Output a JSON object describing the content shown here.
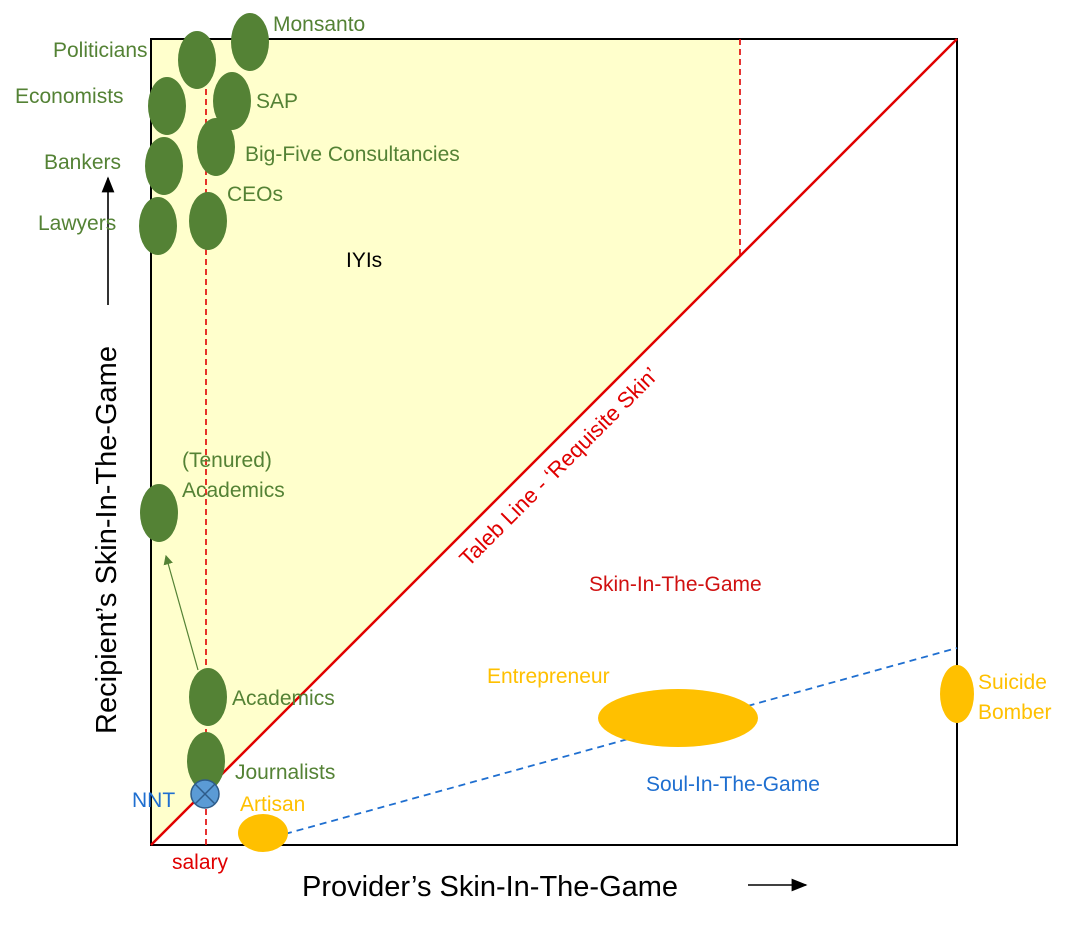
{
  "colors": {
    "green": "#548235",
    "green_fill": "#548235",
    "orange": "#FFC000",
    "red": "#E00000",
    "blue": "#1F6FD0",
    "blue_fill": "#5B9BD5",
    "yellow_region": "#FFFFCC",
    "black": "#000000"
  },
  "axes": {
    "x_label": "Provider’s Skin-In-The-Game",
    "y_label": "Recipient’s Skin-In-The-Game"
  },
  "lines": {
    "taleb_line": "Taleb Line - ‘Requisite Skin’",
    "salary": "salary"
  },
  "regions": {
    "iyis": "IYIs",
    "skin": "Skin-In-The-Game",
    "soul": "Soul-In-The-Game"
  },
  "green_labels": {
    "monsanto": "Monsanto",
    "politicians": "Politicians",
    "economists": "Economists",
    "sap": "SAP",
    "bankers": "Bankers",
    "big_five": "Big-Five Consultancies",
    "ceos": "CEOs",
    "lawyers": "Lawyers",
    "tenured_line1": "(Tenured)",
    "tenured_line2": "Academics",
    "academics": "Academics",
    "journalists": "Journalists"
  },
  "other_labels": {
    "nnt": "NNT",
    "artisan": "Artisan",
    "entrepreneur": "Entrepreneur",
    "suicide_line1": "Suicide",
    "suicide_line2": "Bomber"
  },
  "icons": {
    "nnt_marker": "circled-x-icon",
    "x_arrow": "arrow-right-icon",
    "y_arrow": "arrow-up-icon"
  }
}
